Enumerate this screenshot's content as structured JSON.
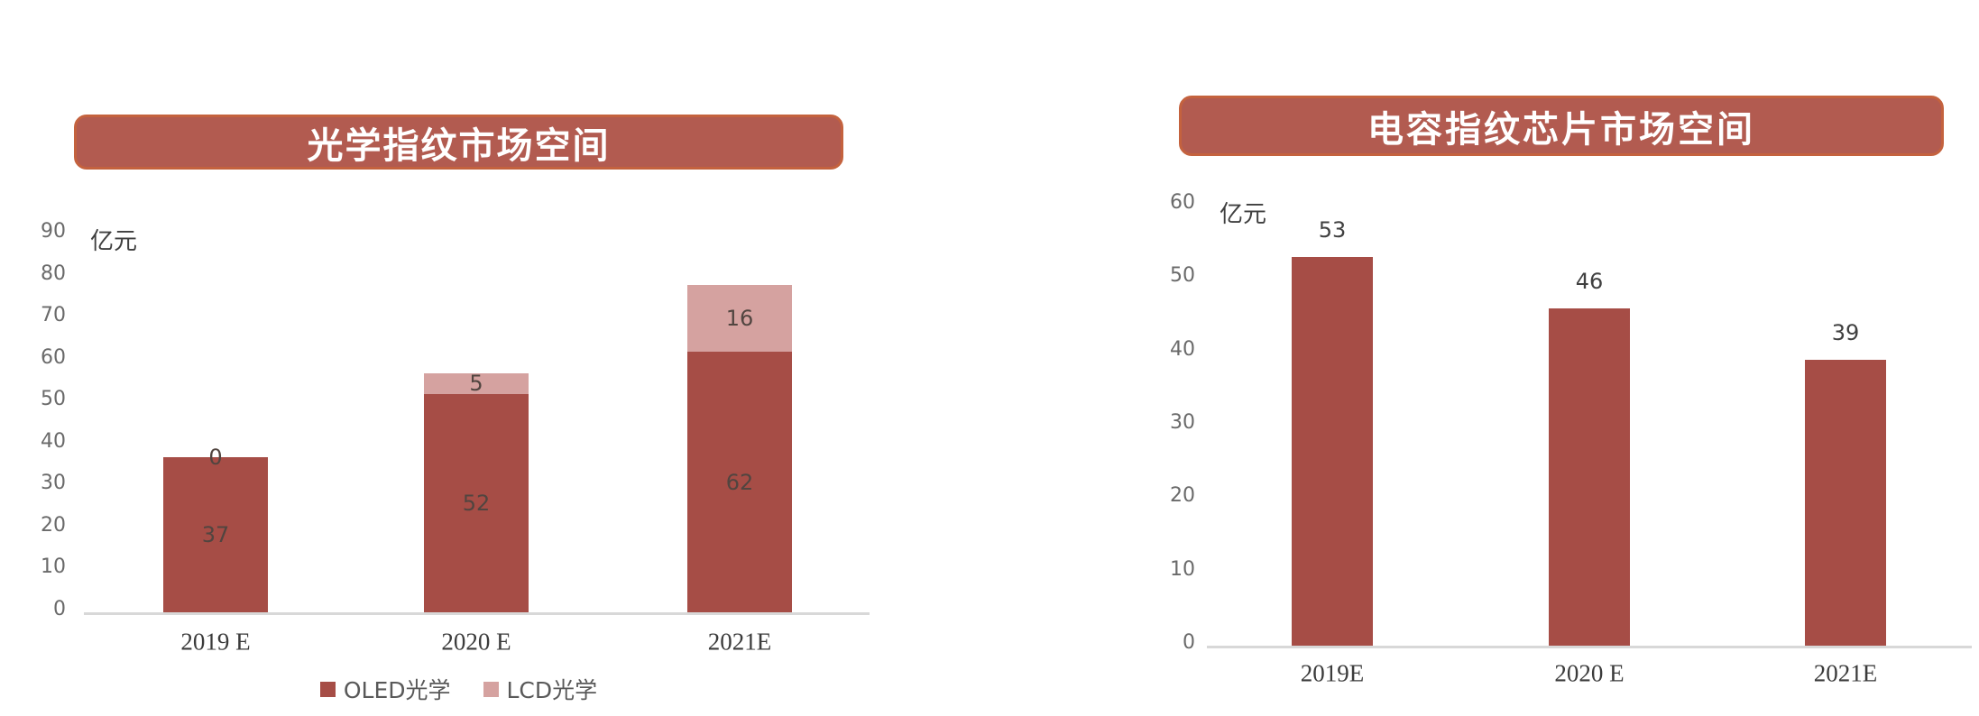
{
  "page": {
    "background": "#FFFFFF"
  },
  "colors": {
    "bar_dark": "#A64D46",
    "bar_pink": "#D5A2A0",
    "banner_fill": "#B25B50",
    "banner_border": "#C4623E",
    "axis_line": "#D8D8D8",
    "tick_text": "#6A6A6A",
    "x_label_text": "#3B3B3B",
    "unit_text": "#3F3F3F",
    "segment_label_text": "#514540",
    "value_label_text": "#404040",
    "legend_text": "#595959",
    "title_text": "#FFFFFF"
  },
  "chart_data": [
    {
      "type": "bar",
      "subtype": "stacked",
      "title": "光学指纹市场空间",
      "unit_label": "亿元",
      "categories": [
        "2019 E",
        "2020 E",
        "2021E"
      ],
      "series": [
        {
          "name": "OLED光学",
          "color_key": "bar_dark",
          "values": [
            37,
            52,
            62
          ]
        },
        {
          "name": "LCD光学",
          "color_key": "bar_pink",
          "values": [
            0,
            5,
            16
          ]
        }
      ],
      "ylim": [
        0,
        90
      ],
      "ytick_step": 10,
      "yticks": [
        "0",
        "10",
        "20",
        "30",
        "40",
        "50",
        "60",
        "70",
        "80",
        "90"
      ],
      "grid": false,
      "legend_position": "bottom"
    },
    {
      "type": "bar",
      "subtype": "simple",
      "title": "电容指纹芯片市场空间",
      "unit_label": "亿元",
      "categories": [
        "2019E",
        "2020 E",
        "2021E"
      ],
      "values": [
        53,
        46,
        39
      ],
      "data_labels": [
        "53",
        "46",
        "39"
      ],
      "ylim": [
        0,
        60
      ],
      "ytick_step": 10,
      "yticks": [
        "0",
        "10",
        "20",
        "30",
        "40",
        "50",
        "60"
      ],
      "grid": false,
      "legend_position": "none"
    }
  ]
}
